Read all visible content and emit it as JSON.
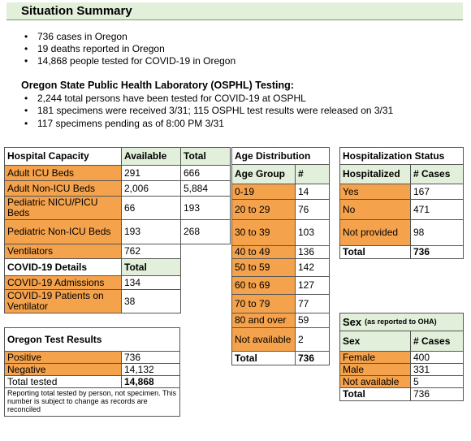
{
  "title": "Situation Summary",
  "bullets": [
    "736 cases in Oregon",
    "19 deaths reported in Oregon",
    "14,868 people tested for COVID-19 in Oregon"
  ],
  "osphl": {
    "heading": "Oregon State Public Health Laboratory (OSPHL) Testing:",
    "bullets": [
      "2,244 total persons have been tested for COVID-19 at OSPHL",
      "181 specimens were received 3/31; 115 OSPHL test results were released on 3/31",
      "117 specimens pending as of 8:00 PM 3/31"
    ]
  },
  "hospital_capacity": {
    "header": [
      "Hospital Capacity",
      "Available",
      "Total"
    ],
    "rows": [
      [
        "Adult ICU Beds",
        "291",
        "666"
      ],
      [
        "Adult Non-ICU Beds",
        "2,006",
        "5,884"
      ],
      [
        "Pediatric NICU/PICU Beds",
        "66",
        "193"
      ],
      [
        "Pediatric Non-ICU Beds",
        "193",
        "268"
      ],
      [
        "Ventilators",
        "762"
      ]
    ]
  },
  "covid_details": {
    "header": [
      "COVID-19 Details",
      "Total"
    ],
    "rows": [
      [
        "COVID-19 Admissions",
        "134"
      ],
      [
        "COVID-19 Patients on Ventilator",
        "38"
      ]
    ]
  },
  "test_results": {
    "title": "Oregon Test Results",
    "rows": [
      [
        "Positive",
        "736"
      ],
      [
        "Negative",
        "14,132"
      ]
    ],
    "total": [
      "Total tested",
      "14,868"
    ],
    "note": "Reporting total tested by person, not specimen. This number is subject to change as records are reconciled"
  },
  "age_distribution": {
    "title": "Age Distribution",
    "header": [
      "Age Group",
      "#"
    ],
    "rows": [
      [
        "0-19",
        "14"
      ],
      [
        "20 to 29",
        "76"
      ],
      [
        "30 to 39",
        "103"
      ],
      [
        "40 to 49",
        "136"
      ],
      [
        "50 to 59",
        "142"
      ],
      [
        "60 to 69",
        "127"
      ],
      [
        "70 to 79",
        "77"
      ],
      [
        "80 and over",
        "59"
      ],
      [
        "Not available",
        "2"
      ]
    ],
    "total": [
      "Total",
      "736"
    ]
  },
  "hospitalization_status": {
    "title": "Hospitalization Status",
    "header": [
      "Hospitalized",
      "# Cases"
    ],
    "rows": [
      [
        "Yes",
        "167"
      ],
      [
        "No",
        "471"
      ],
      [
        "Not provided",
        "98"
      ]
    ],
    "total": [
      "Total",
      "736"
    ]
  },
  "sex": {
    "title": "Sex",
    "title_note": "(as reported to OHA)",
    "header": [
      "Sex",
      "# Cases"
    ],
    "rows": [
      [
        "Female",
        "400"
      ],
      [
        "Male",
        "331"
      ],
      [
        "Not available",
        "5"
      ]
    ],
    "total": [
      "Total",
      "736"
    ]
  }
}
